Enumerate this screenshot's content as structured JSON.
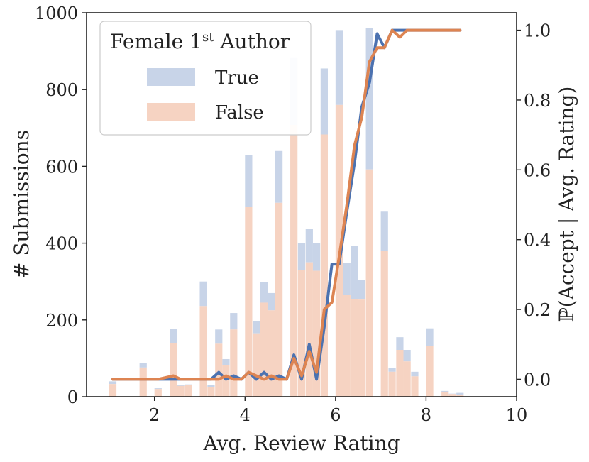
{
  "chart_data": {
    "type": "bar",
    "xlabel": "Avg. Review Rating",
    "ylabel": "# Submissions",
    "y2label": "ℙ(Accept | Avg. Rating)",
    "xlim": [
      0.5,
      10
    ],
    "ylim": [
      0,
      1000
    ],
    "y2lim": [
      -0.05,
      1.05
    ],
    "xticks": [
      "2",
      "4",
      "6",
      "8",
      "10"
    ],
    "yticks": [
      "0",
      "200",
      "400",
      "600",
      "800",
      "1000"
    ],
    "y2ticks": [
      "0.0",
      "0.2",
      "0.4",
      "0.6",
      "0.8",
      "1.0"
    ],
    "legend": {
      "title_main": "Female 1",
      "title_sup": "st",
      "title_rest": " Author",
      "placement": "top-left",
      "entries": [
        "True",
        "False"
      ]
    },
    "colors": {
      "true_bar": "#c8d4e8",
      "false_bar": "#f6d3c2",
      "true_line": "#4c72b0",
      "false_line": "#dd8452"
    },
    "bar_width": 0.16,
    "bars": [
      {
        "x": 1.08,
        "total": 40,
        "false": 33
      },
      {
        "x": 1.75,
        "total": 87,
        "false": 76
      },
      {
        "x": 2.08,
        "total": 22,
        "false": 20
      },
      {
        "x": 2.42,
        "total": 177,
        "false": 140
      },
      {
        "x": 2.58,
        "total": 30,
        "false": 28
      },
      {
        "x": 2.75,
        "total": 32,
        "false": 30
      },
      {
        "x": 3.08,
        "total": 300,
        "false": 236
      },
      {
        "x": 3.25,
        "total": 30,
        "false": 25
      },
      {
        "x": 3.42,
        "total": 175,
        "false": 138
      },
      {
        "x": 3.58,
        "total": 98,
        "false": 82
      },
      {
        "x": 3.75,
        "total": 218,
        "false": 175
      },
      {
        "x": 4.08,
        "total": 630,
        "false": 495
      },
      {
        "x": 4.25,
        "total": 197,
        "false": 165
      },
      {
        "x": 4.42,
        "total": 298,
        "false": 245
      },
      {
        "x": 4.58,
        "total": 270,
        "false": 225
      },
      {
        "x": 4.75,
        "total": 640,
        "false": 505
      },
      {
        "x": 5.08,
        "total": 882,
        "false": 708
      },
      {
        "x": 5.25,
        "total": 400,
        "false": 330
      },
      {
        "x": 5.42,
        "total": 438,
        "false": 350
      },
      {
        "x": 5.58,
        "total": 400,
        "false": 328
      },
      {
        "x": 5.75,
        "total": 855,
        "false": 683
      },
      {
        "x": 6.08,
        "total": 955,
        "false": 760
      },
      {
        "x": 6.25,
        "total": 348,
        "false": 265
      },
      {
        "x": 6.42,
        "total": 392,
        "false": 255
      },
      {
        "x": 6.58,
        "total": 305,
        "false": 253
      },
      {
        "x": 6.75,
        "total": 960,
        "false": 592
      },
      {
        "x": 7.08,
        "total": 482,
        "false": 380
      },
      {
        "x": 7.25,
        "total": 75,
        "false": 65
      },
      {
        "x": 7.42,
        "total": 155,
        "false": 122
      },
      {
        "x": 7.58,
        "total": 122,
        "false": 92
      },
      {
        "x": 7.75,
        "total": 65,
        "false": 53
      },
      {
        "x": 8.08,
        "total": 178,
        "false": 132
      },
      {
        "x": 8.42,
        "total": 15,
        "false": 13
      },
      {
        "x": 8.58,
        "total": 8,
        "false": 7
      },
      {
        "x": 8.75,
        "total": 10,
        "false": 4
      }
    ],
    "line_true_x": [
      1.08,
      1.75,
      2.08,
      2.42,
      2.58,
      2.75,
      3.08,
      3.25,
      3.42,
      3.58,
      3.75,
      3.92,
      4.08,
      4.25,
      4.42,
      4.58,
      4.75,
      4.92,
      5.08,
      5.25,
      5.42,
      5.58,
      5.75,
      5.92,
      6.08,
      6.25,
      6.42,
      6.58,
      6.75,
      6.92,
      7.08,
      7.25,
      7.42,
      7.58,
      7.75,
      8.08,
      8.42,
      8.58,
      8.75
    ],
    "line_true_y": [
      0.0,
      0.0,
      0.0,
      0.0,
      0.0,
      0.0,
      0.0,
      0.0,
      0.02,
      0.0,
      0.01,
      0.0,
      0.02,
      0.0,
      0.02,
      0.0,
      0.01,
      0.0,
      0.07,
      0.0,
      0.1,
      0.0,
      0.15,
      0.33,
      0.33,
      0.48,
      0.62,
      0.78,
      0.85,
      0.99,
      0.95,
      1.0,
      1.0,
      1.0,
      1.0,
      1.0,
      1.0,
      1.0,
      1.0
    ],
    "line_false_x": [
      1.08,
      1.75,
      2.08,
      2.42,
      2.58,
      2.75,
      3.08,
      3.25,
      3.42,
      3.58,
      3.75,
      3.92,
      4.08,
      4.25,
      4.42,
      4.58,
      4.75,
      4.92,
      5.08,
      5.25,
      5.42,
      5.58,
      5.75,
      5.92,
      6.08,
      6.25,
      6.42,
      6.58,
      6.75,
      6.92,
      7.08,
      7.25,
      7.42,
      7.58,
      7.75,
      8.08,
      8.42,
      8.58,
      8.75
    ],
    "line_false_y": [
      0.0,
      0.0,
      0.0,
      0.01,
      0.0,
      0.0,
      0.0,
      0.0,
      0.0,
      0.01,
      0.0,
      0.0,
      0.02,
      0.01,
      0.0,
      0.01,
      0.0,
      0.0,
      0.06,
      0.01,
      0.08,
      0.02,
      0.2,
      0.22,
      0.35,
      0.5,
      0.67,
      0.75,
      0.91,
      0.95,
      0.95,
      1.0,
      0.98,
      1.0,
      1.0,
      1.0,
      1.0,
      1.0,
      1.0
    ]
  }
}
